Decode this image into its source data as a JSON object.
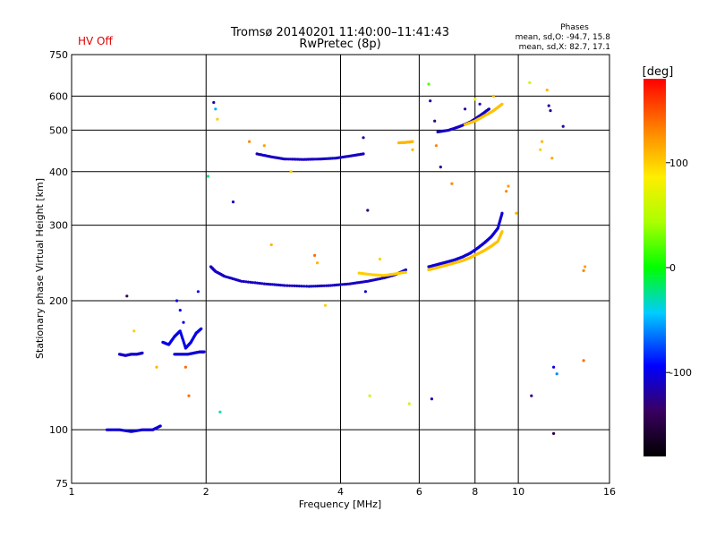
{
  "header": {
    "title_line1": "Tromsø 20140201 11:40:00–11:41:43",
    "title_line2": "RwPretec (8p)",
    "status": "HV Off"
  },
  "stats": {
    "heading": "Phases",
    "line1": "mean, sd,O: -94.7, 15.8",
    "line2": "mean, sd,X: 82.7, 17.1"
  },
  "colors": {
    "status": "#e00000",
    "frame": "#000000",
    "grid": "#000000"
  },
  "chart_data": {
    "type": "scatter",
    "xlabel": "Frequency [MHz]",
    "ylabel": "Stationary phase Virtual Height [km]",
    "xscale": "log2",
    "yscale": "log",
    "xlim": [
      1,
      16
    ],
    "ylim": [
      75,
      750
    ],
    "xticks": [
      1,
      2,
      4,
      6,
      8,
      10,
      16
    ],
    "xtick_labels": [
      "1",
      "2",
      "4",
      "6",
      "8",
      "10",
      "16"
    ],
    "xgrid": [
      2,
      4,
      6,
      8,
      10
    ],
    "yticks": [
      75,
      100,
      200,
      300,
      400,
      500,
      600,
      750
    ],
    "ytick_labels": [
      "75",
      "100",
      "200",
      "300",
      "400",
      "500",
      "600",
      "750"
    ],
    "ygrid": [
      100,
      200,
      300,
      400,
      500,
      600
    ],
    "colorbar": {
      "label": "[deg]",
      "range": [
        -180,
        180
      ],
      "ticks": [
        100,
        0,
        -100
      ],
      "tick_labels": [
        "100",
        "0",
        "-100"
      ],
      "colormap": "rainbow"
    },
    "traces": [
      {
        "name": "",
        "phase": -105,
        "x": [
          1.2,
          1.28,
          1.36,
          1.44,
          1.52,
          1.58
        ],
        "y": [
          100,
          100,
          99,
          100,
          100,
          102
        ]
      },
      {
        "name": "",
        "phase": -108,
        "x": [
          1.28,
          1.32,
          1.36,
          1.4,
          1.44
        ],
        "y": [
          150,
          149,
          150,
          150,
          151
        ]
      },
      {
        "name": "",
        "phase": -100,
        "x": [
          1.6,
          1.65,
          1.7,
          1.75,
          1.8,
          1.85,
          1.9,
          1.95
        ],
        "y": [
          160,
          158,
          165,
          170,
          155,
          160,
          168,
          172
        ]
      },
      {
        "name": "",
        "phase": -105,
        "x": [
          1.7,
          1.76,
          1.82,
          1.88,
          1.94,
          1.98
        ],
        "y": [
          150,
          150,
          150,
          151,
          152,
          152
        ]
      },
      {
        "name": "",
        "phase": -110,
        "x": [
          2.05,
          2.1,
          2.2,
          2.4,
          2.7,
          3.0,
          3.4,
          3.8,
          4.2,
          4.6,
          5.0,
          5.3,
          5.6
        ],
        "y": [
          240,
          234,
          228,
          222,
          219,
          217,
          216,
          217,
          219,
          222,
          226,
          230,
          236
        ]
      },
      {
        "name": "",
        "phase": -110,
        "x": [
          2.6,
          2.8,
          3.0,
          3.3,
          3.6,
          3.9,
          4.2,
          4.5
        ],
        "y": [
          440,
          433,
          428,
          427,
          428,
          430,
          435,
          440
        ]
      },
      {
        "name": "",
        "phase": 100,
        "x": [
          4.4,
          4.7,
          5.0,
          5.3,
          5.6
        ],
        "y": [
          232,
          230,
          229,
          231,
          233
        ]
      },
      {
        "name": "",
        "phase": 110,
        "x": [
          5.4,
          5.6,
          5.8
        ],
        "y": [
          467,
          468,
          470
        ]
      },
      {
        "name": "",
        "phase": -105,
        "x": [
          6.3,
          6.6,
          6.9,
          7.2,
          7.5,
          7.8,
          8.1,
          8.4,
          8.7,
          9.0,
          9.2
        ],
        "y": [
          240,
          243,
          246,
          249,
          253,
          258,
          265,
          273,
          282,
          295,
          320
        ]
      },
      {
        "name": "",
        "phase": 105,
        "x": [
          6.3,
          6.6,
          6.9,
          7.2,
          7.5,
          7.8,
          8.1,
          8.4,
          8.7,
          9.0,
          9.2
        ],
        "y": [
          236,
          239,
          242,
          245,
          248,
          252,
          257,
          262,
          268,
          275,
          290
        ]
      },
      {
        "name": "",
        "phase": -110,
        "x": [
          6.6,
          7.0,
          7.4,
          7.8,
          8.2,
          8.6
        ],
        "y": [
          495,
          500,
          510,
          522,
          540,
          560
        ]
      },
      {
        "name": "",
        "phase": 105,
        "x": [
          7.6,
          8.0,
          8.4,
          8.8,
          9.2
        ],
        "y": [
          515,
          525,
          540,
          555,
          575
        ]
      }
    ],
    "points": [
      {
        "x": 1.33,
        "y": 205,
        "phase": -140
      },
      {
        "x": 1.38,
        "y": 170,
        "phase": 100
      },
      {
        "x": 1.55,
        "y": 140,
        "phase": 110
      },
      {
        "x": 1.72,
        "y": 200,
        "phase": -100
      },
      {
        "x": 1.75,
        "y": 190,
        "phase": -95
      },
      {
        "x": 1.78,
        "y": 178,
        "phase": -100
      },
      {
        "x": 1.8,
        "y": 140,
        "phase": 140
      },
      {
        "x": 1.83,
        "y": 120,
        "phase": 140
      },
      {
        "x": 1.92,
        "y": 210,
        "phase": -90
      },
      {
        "x": 2.02,
        "y": 390,
        "phase": -20
      },
      {
        "x": 2.08,
        "y": 580,
        "phase": -120
      },
      {
        "x": 2.1,
        "y": 560,
        "phase": -50
      },
      {
        "x": 2.12,
        "y": 530,
        "phase": 100
      },
      {
        "x": 2.15,
        "y": 110,
        "phase": -30
      },
      {
        "x": 2.3,
        "y": 340,
        "phase": -110
      },
      {
        "x": 2.5,
        "y": 470,
        "phase": 130
      },
      {
        "x": 2.7,
        "y": 460,
        "phase": 120
      },
      {
        "x": 2.8,
        "y": 270,
        "phase": 110
      },
      {
        "x": 3.1,
        "y": 400,
        "phase": 100
      },
      {
        "x": 3.5,
        "y": 255,
        "phase": 140
      },
      {
        "x": 3.55,
        "y": 245,
        "phase": 110
      },
      {
        "x": 3.7,
        "y": 195,
        "phase": 100
      },
      {
        "x": 4.5,
        "y": 480,
        "phase": -120
      },
      {
        "x": 4.55,
        "y": 210,
        "phase": -100
      },
      {
        "x": 4.6,
        "y": 325,
        "phase": -130
      },
      {
        "x": 4.65,
        "y": 120,
        "phase": 60
      },
      {
        "x": 4.9,
        "y": 250,
        "phase": 100
      },
      {
        "x": 5.7,
        "y": 115,
        "phase": 60
      },
      {
        "x": 5.8,
        "y": 450,
        "phase": 110
      },
      {
        "x": 6.3,
        "y": 640,
        "phase": 20
      },
      {
        "x": 6.35,
        "y": 585,
        "phase": -120
      },
      {
        "x": 6.5,
        "y": 525,
        "phase": -130
      },
      {
        "x": 6.55,
        "y": 460,
        "phase": 130
      },
      {
        "x": 6.7,
        "y": 410,
        "phase": -120
      },
      {
        "x": 6.4,
        "y": 118,
        "phase": -110
      },
      {
        "x": 7.1,
        "y": 375,
        "phase": 130
      },
      {
        "x": 7.6,
        "y": 560,
        "phase": -120
      },
      {
        "x": 8.0,
        "y": 590,
        "phase": 80
      },
      {
        "x": 8.2,
        "y": 575,
        "phase": -110
      },
      {
        "x": 8.8,
        "y": 600,
        "phase": 110
      },
      {
        "x": 9.4,
        "y": 360,
        "phase": 130
      },
      {
        "x": 9.5,
        "y": 370,
        "phase": 120
      },
      {
        "x": 9.9,
        "y": 320,
        "phase": 110
      },
      {
        "x": 10.6,
        "y": 645,
        "phase": 60
      },
      {
        "x": 10.7,
        "y": 120,
        "phase": -130
      },
      {
        "x": 11.2,
        "y": 450,
        "phase": 100
      },
      {
        "x": 11.3,
        "y": 470,
        "phase": 110
      },
      {
        "x": 11.6,
        "y": 620,
        "phase": 110
      },
      {
        "x": 11.7,
        "y": 570,
        "phase": -120
      },
      {
        "x": 11.8,
        "y": 555,
        "phase": -120
      },
      {
        "x": 11.9,
        "y": 430,
        "phase": 115
      },
      {
        "x": 12.0,
        "y": 140,
        "phase": -100
      },
      {
        "x": 12.2,
        "y": 135,
        "phase": -60
      },
      {
        "x": 12.0,
        "y": 98,
        "phase": -150
      },
      {
        "x": 12.6,
        "y": 510,
        "phase": -120
      },
      {
        "x": 14.0,
        "y": 235,
        "phase": 130
      },
      {
        "x": 14.1,
        "y": 240,
        "phase": 120
      },
      {
        "x": 14.0,
        "y": 145,
        "phase": 140
      }
    ]
  }
}
